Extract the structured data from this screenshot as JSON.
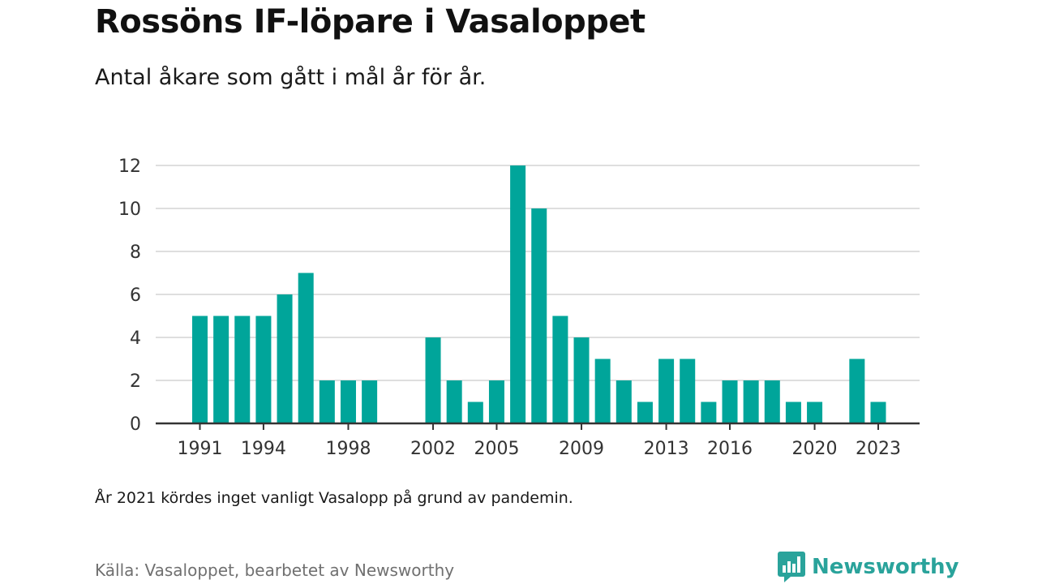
{
  "header": {
    "title": "Rossöns IF-löpare i Vasaloppet",
    "subtitle": "Antal åkare som gått i mål år för år."
  },
  "footer": {
    "note": "År 2021 kördes inget vanligt Vasalopp på grund av pandemin.",
    "source": "Källa: Vasaloppet, bearbetet av Newsworthy",
    "brand": "Newsworthy",
    "brand_icon": "newsworthy-logo-icon"
  },
  "colors": {
    "bar": "#00a59a",
    "grid": "#dedede",
    "axis": "#333333",
    "brand": "#2aa39b"
  },
  "chart_data": {
    "type": "bar",
    "title": "Rossöns IF-löpare i Vasaloppet",
    "subtitle": "Antal åkare som gått i mål år för år.",
    "xlabel": "",
    "ylabel": "",
    "ylim": [
      0,
      12
    ],
    "y_ticks": [
      0,
      2,
      4,
      6,
      8,
      10,
      12
    ],
    "x_ticks": [
      1991,
      1994,
      1998,
      2002,
      2005,
      2009,
      2013,
      2016,
      2020,
      2023
    ],
    "grid": true,
    "categories": [
      1991,
      1992,
      1993,
      1994,
      1995,
      1996,
      1997,
      1998,
      1999,
      2000,
      2001,
      2002,
      2003,
      2004,
      2005,
      2006,
      2007,
      2008,
      2009,
      2010,
      2011,
      2012,
      2013,
      2014,
      2015,
      2016,
      2017,
      2018,
      2019,
      2020,
      2021,
      2022,
      2023
    ],
    "values": [
      5,
      5,
      5,
      5,
      6,
      7,
      2,
      2,
      2,
      0,
      0,
      4,
      2,
      1,
      2,
      12,
      10,
      5,
      4,
      3,
      2,
      1,
      3,
      3,
      1,
      2,
      2,
      2,
      1,
      1,
      0,
      3,
      1
    ]
  }
}
